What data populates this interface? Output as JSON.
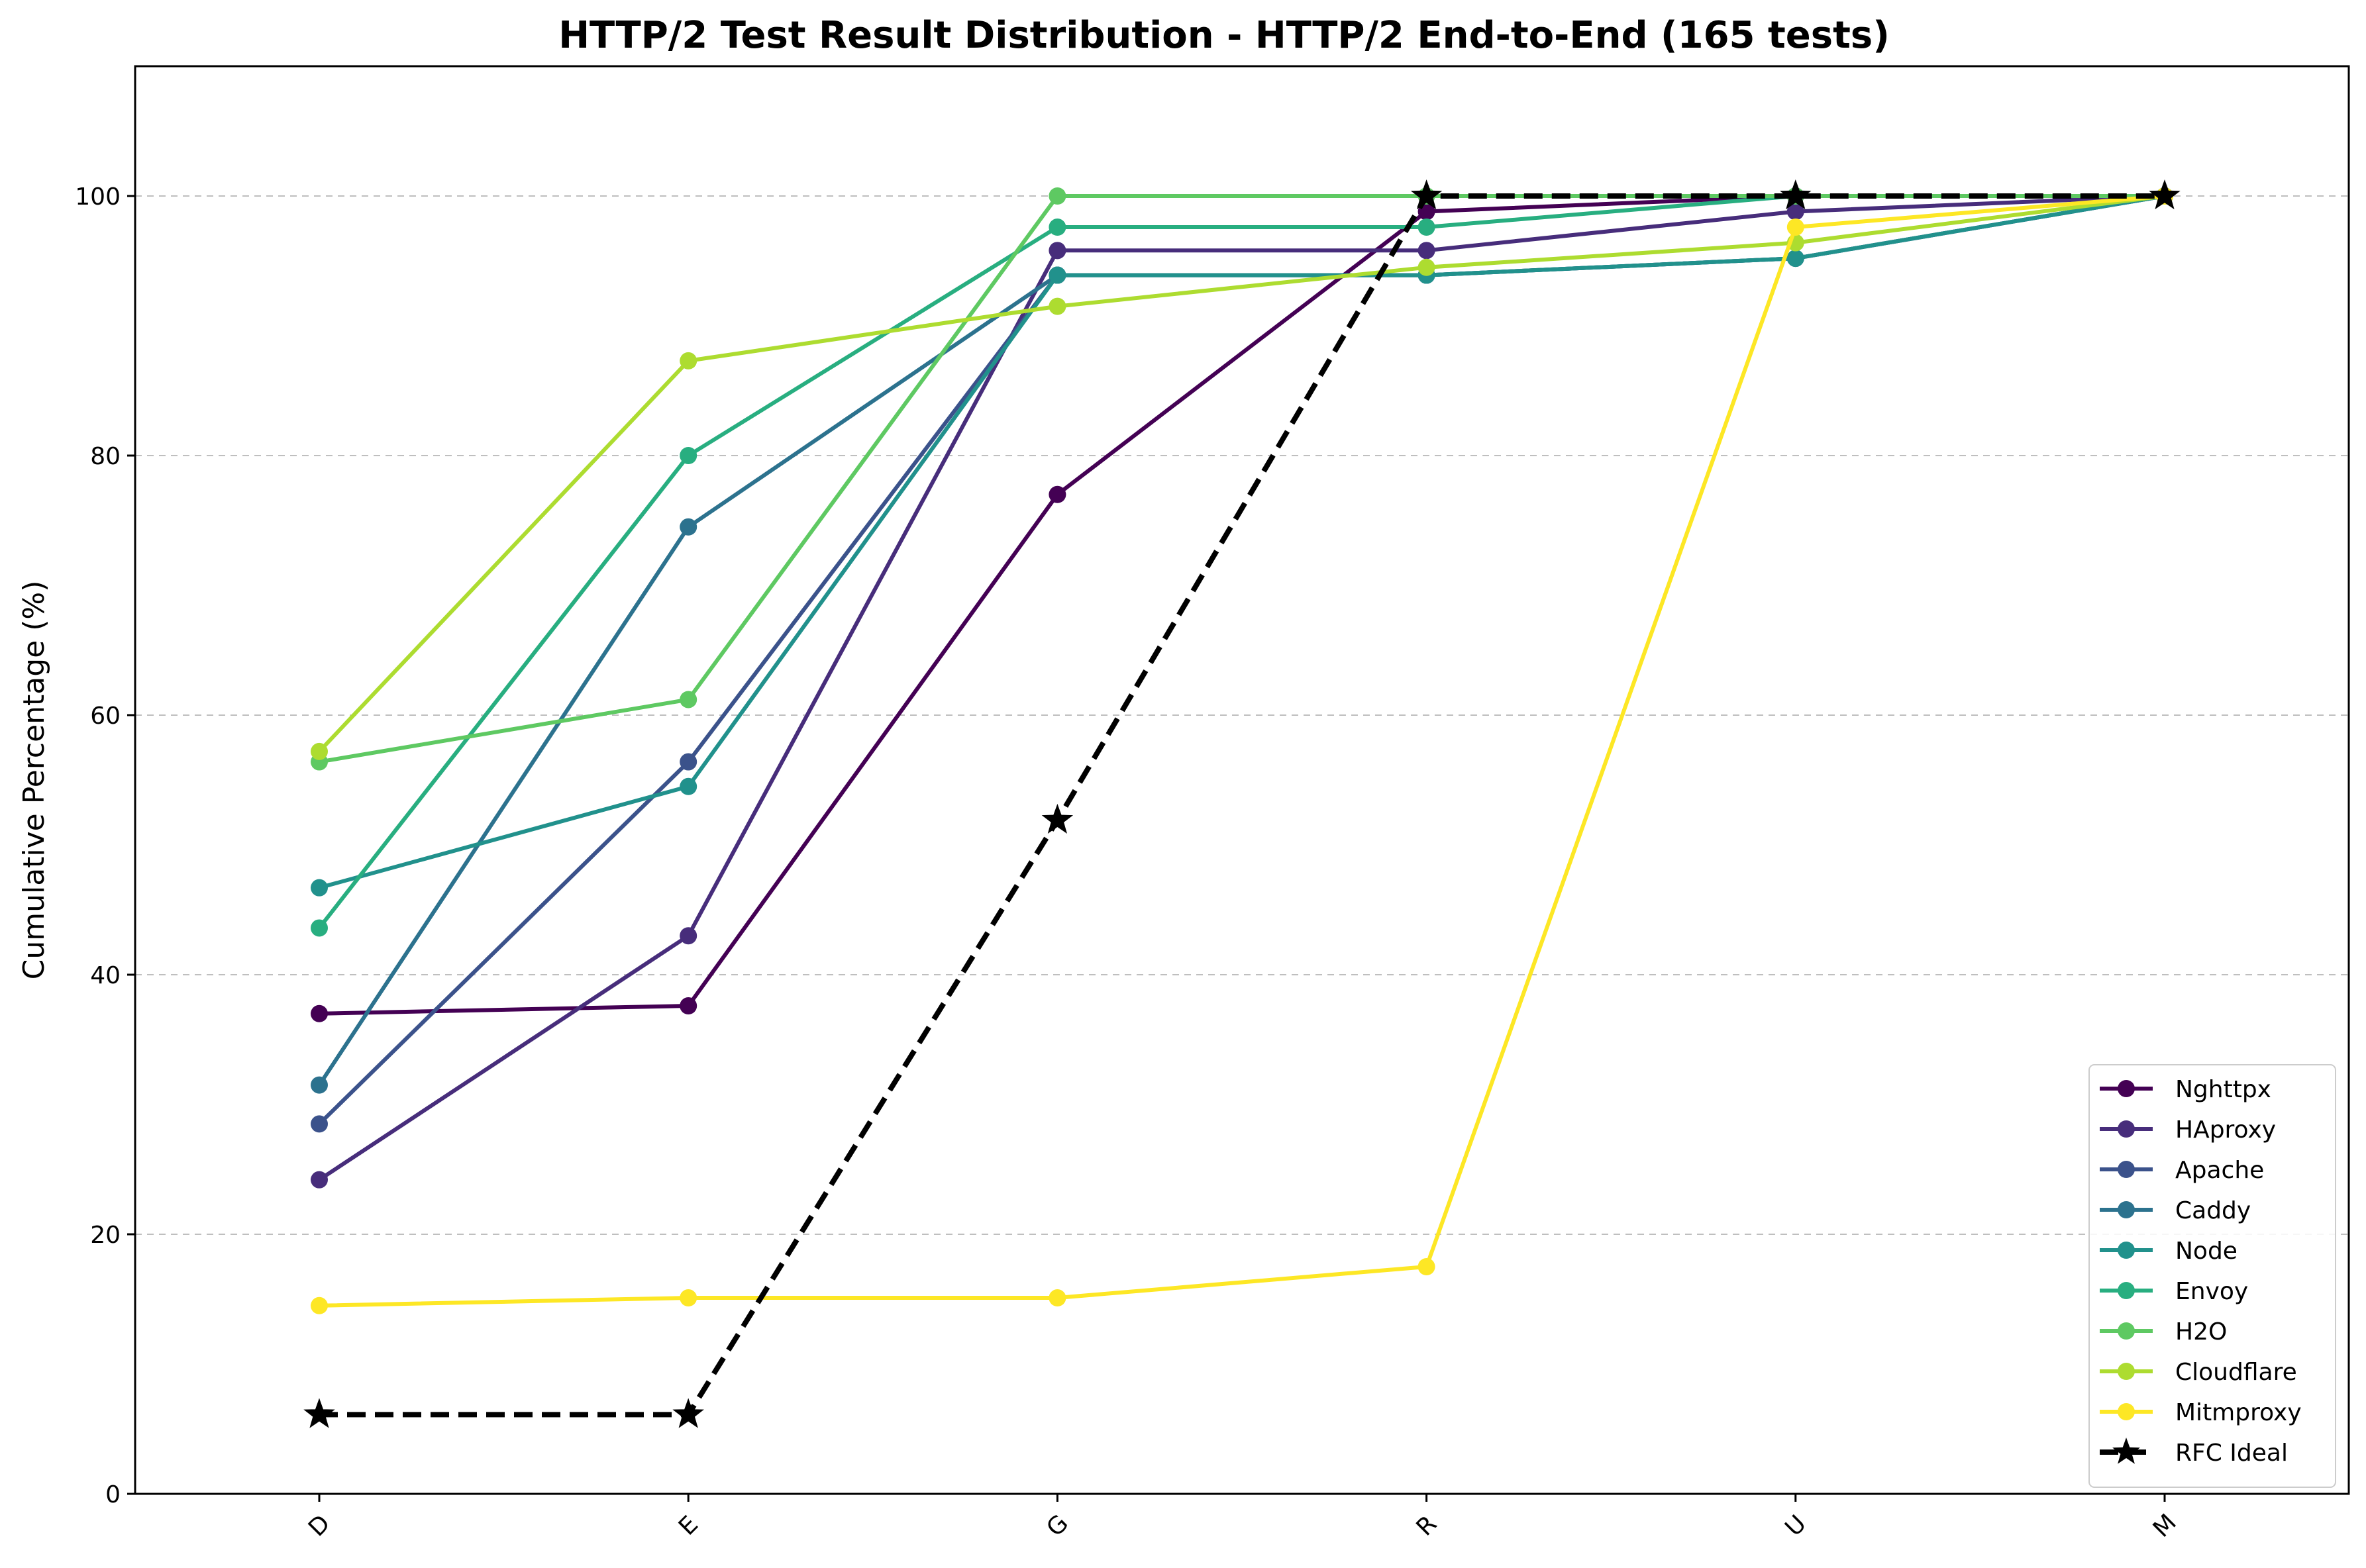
{
  "chart_data": {
    "type": "line",
    "title": "HTTP/2 Test Result Distribution - HTTP/2 End-to-End (165 tests)",
    "xlabel": "",
    "ylabel": "Cumulative Percentage (%)",
    "categories": [
      "D",
      "E",
      "G",
      "R",
      "U",
      "M"
    ],
    "ylim": [
      0,
      110
    ],
    "yticks": [
      0,
      20,
      40,
      60,
      80,
      100
    ],
    "grid": "y-dashed",
    "legend_position": "lower-right",
    "series": [
      {
        "name": "Nghttpx",
        "color": "#440154",
        "marker": "circle",
        "style": "solid",
        "values": [
          37.0,
          37.6,
          77.0,
          98.8,
          100,
          100
        ]
      },
      {
        "name": "HAproxy",
        "color": "#472d7b",
        "marker": "circle",
        "style": "solid",
        "values": [
          24.2,
          43.0,
          95.8,
          95.8,
          98.8,
          100
        ]
      },
      {
        "name": "Apache",
        "color": "#3b528b",
        "marker": "circle",
        "style": "solid",
        "values": [
          28.5,
          56.4,
          93.9,
          93.9,
          95.2,
          100
        ]
      },
      {
        "name": "Caddy",
        "color": "#2c728e",
        "marker": "circle",
        "style": "solid",
        "values": [
          31.5,
          74.5,
          93.9,
          93.9,
          95.2,
          100
        ]
      },
      {
        "name": "Node",
        "color": "#21918c",
        "marker": "circle",
        "style": "solid",
        "values": [
          46.7,
          54.5,
          93.9,
          93.9,
          95.2,
          100
        ]
      },
      {
        "name": "Envoy",
        "color": "#28ae80",
        "marker": "circle",
        "style": "solid",
        "values": [
          43.6,
          80.0,
          97.6,
          97.6,
          100,
          100
        ]
      },
      {
        "name": "H2O",
        "color": "#5ec962",
        "marker": "circle",
        "style": "solid",
        "values": [
          56.4,
          61.2,
          100,
          100,
          100,
          100
        ]
      },
      {
        "name": "Cloudflare",
        "color": "#addc30",
        "marker": "circle",
        "style": "solid",
        "values": [
          57.2,
          87.3,
          91.5,
          94.5,
          96.4,
          100
        ]
      },
      {
        "name": "Mitmproxy",
        "color": "#fde725",
        "marker": "circle",
        "style": "solid",
        "values": [
          14.5,
          15.1,
          15.1,
          17.5,
          97.6,
          100
        ]
      },
      {
        "name": "RFC Ideal",
        "color": "#000000",
        "marker": "star",
        "style": "dashed",
        "values": [
          6.1,
          6.1,
          51.9,
          100,
          100,
          100
        ]
      }
    ]
  }
}
